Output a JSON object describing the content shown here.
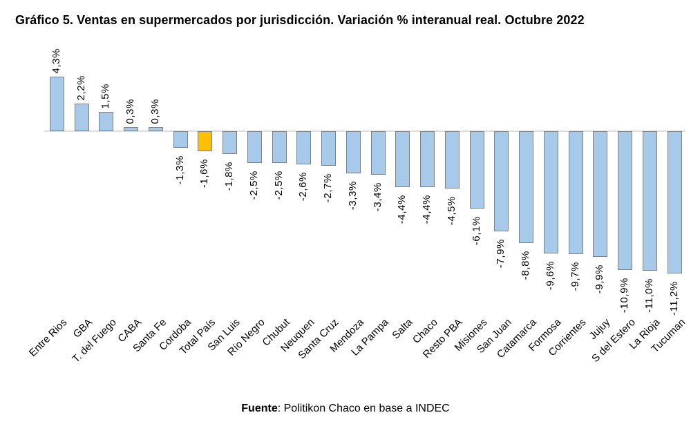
{
  "title": "Gráfico 5. Ventas en supermercados por jurisdicción. Variación % interanual real. Octubre 2022",
  "footer": {
    "source_label": "Fuente",
    "source_text": ": Politikon Chaco en base a INDEC"
  },
  "colors": {
    "bar_fill": "#A7C9EA",
    "bar_border": "#7F7F7F",
    "highlight_fill": "#FFC000",
    "axis_line": "#DCDCDC",
    "text": "#000000"
  },
  "chart_data": {
    "type": "bar",
    "title": "Gráfico 5. Ventas en supermercados por jurisdicción. Variación % interanual real. Octubre 2022",
    "unit": "%",
    "categories": [
      "Entre Rios",
      "GBA",
      "T. del Fuego",
      "CABA",
      "Santa Fe",
      "Cordoba",
      "Total País",
      "San Luis",
      "Río Negro",
      "Chubut",
      "Neuquen",
      "Santa Cruz",
      "Mendoza",
      "La Pampa",
      "Salta",
      "Chaco",
      "Resto PBA",
      "Misiones",
      "San Juan",
      "Catamarca",
      "Formosa",
      "Corrientes",
      "Jujuy",
      "S del Estero",
      "La Rioja",
      "Tucuman"
    ],
    "values": [
      4.3,
      2.2,
      1.5,
      0.3,
      0.3,
      -1.3,
      -1.6,
      -1.8,
      -2.5,
      -2.5,
      -2.6,
      -2.7,
      -3.3,
      -3.4,
      -4.4,
      -4.4,
      -4.5,
      -6.1,
      -7.9,
      -8.8,
      -9.6,
      -9.7,
      -9.9,
      -10.9,
      -11.0,
      -11.2
    ],
    "value_labels": [
      "4,3%",
      "2,2%",
      "1,5%",
      "0,3%",
      "0,3%",
      "-1,3%",
      "-1,6%",
      "-1,8%",
      "-2,5%",
      "-2,5%",
      "-2,6%",
      "-2,7%",
      "-3,3%",
      "-3,4%",
      "-4,4%",
      "-4,4%",
      "-4,5%",
      "-6,1%",
      "-7,9%",
      "-8,8%",
      "-9,6%",
      "-9,7%",
      "-9,9%",
      "-10,9%",
      "-11,0%",
      "-11,2%"
    ],
    "highlight_index": 6,
    "highlight_category": "Total País",
    "ylim": [
      -12,
      5
    ],
    "baseline": 0,
    "grid": false,
    "legend": false,
    "value_label_rotation": 90,
    "category_label_rotation": 45,
    "source_note": "Fuente: Politikon Chaco en base a INDEC"
  }
}
